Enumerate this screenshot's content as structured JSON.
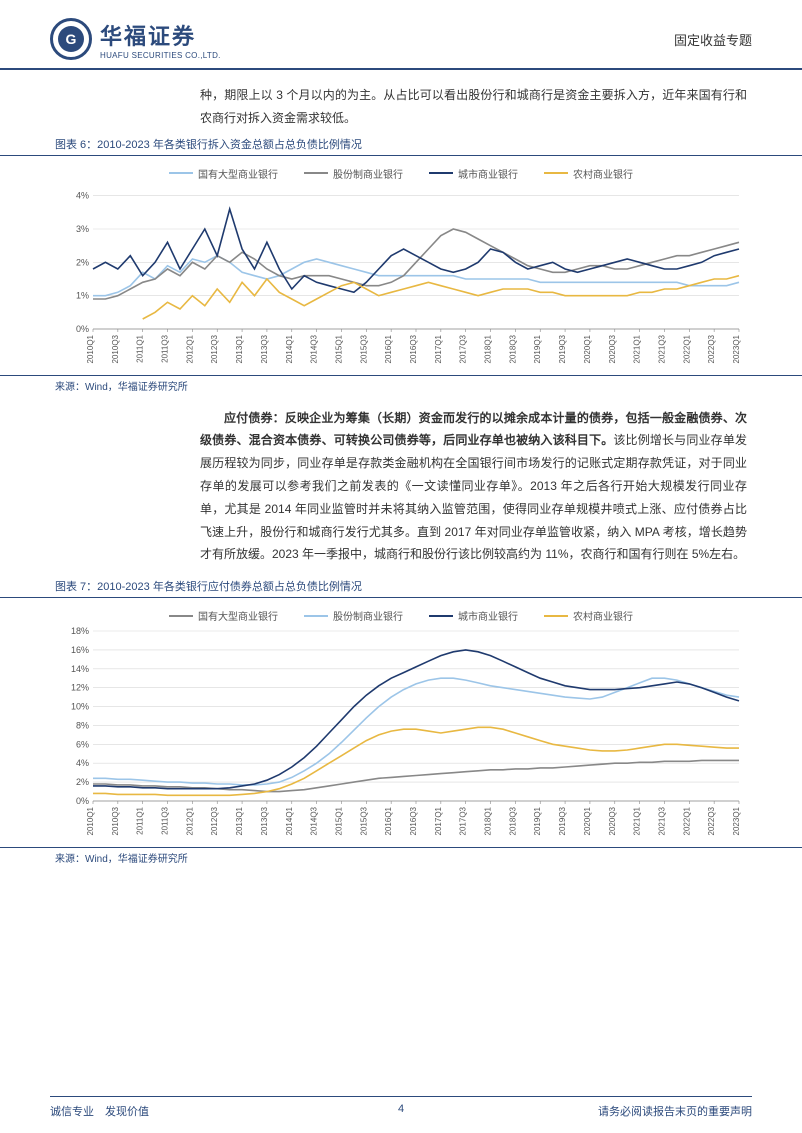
{
  "header": {
    "company_cn": "华福证券",
    "company_en": "HUAFU SECURITIES CO.,LTD.",
    "logo_letter": "G",
    "doc_type": "固定收益专题"
  },
  "para1": "种，期限上以 3 个月以内的为主。从占比可以看出股份行和城商行是资金主要拆入方，近年来国有行和农商行对拆入资金需求较低。",
  "chart6": {
    "caption": "图表 6：2010-2023 年各类银行拆入资金总额占总负债比例情况",
    "source": "来源：Wind，华福证券研究所",
    "type": "line",
    "series": [
      {
        "name": "国有大型商业银行",
        "color": "#9cc5e8"
      },
      {
        "name": "股份制商业银行",
        "color": "#888888"
      },
      {
        "name": "城市商业银行",
        "color": "#1f3a6e"
      },
      {
        "name": "农村商业银行",
        "color": "#e8b842"
      }
    ],
    "ylim": [
      0,
      4.2
    ],
    "yticks": [
      0,
      1,
      2,
      3,
      4
    ],
    "ytick_labels": [
      "0%",
      "1%",
      "2%",
      "3%",
      "4%"
    ],
    "xlabels": [
      "2010Q1",
      "2010Q3",
      "2011Q1",
      "2011Q3",
      "2012Q1",
      "2012Q3",
      "2013Q1",
      "2013Q3",
      "2014Q1",
      "2014Q3",
      "2015Q1",
      "2015Q3",
      "2016Q1",
      "2016Q3",
      "2017Q1",
      "2017Q3",
      "2018Q1",
      "2018Q3",
      "2019Q1",
      "2019Q3",
      "2020Q1",
      "2020Q3",
      "2021Q1",
      "2021Q3",
      "2022Q1",
      "2022Q3",
      "2023Q1"
    ],
    "data": {
      "state": [
        1.0,
        1.0,
        1.1,
        1.3,
        1.7,
        1.5,
        1.9,
        1.7,
        2.1,
        2.0,
        2.2,
        2.0,
        1.7,
        1.6,
        1.5,
        1.6,
        1.8,
        2.0,
        2.1,
        2.0,
        1.9,
        1.8,
        1.7,
        1.6,
        1.6,
        1.6,
        1.6,
        1.6,
        1.6,
        1.6,
        1.5,
        1.5,
        1.5,
        1.5,
        1.5,
        1.5,
        1.4,
        1.4,
        1.4,
        1.4,
        1.4,
        1.4,
        1.4,
        1.4,
        1.4,
        1.4,
        1.4,
        1.4,
        1.3,
        1.3,
        1.3,
        1.3,
        1.4
      ],
      "joint": [
        0.9,
        0.9,
        1.0,
        1.2,
        1.4,
        1.5,
        1.8,
        1.6,
        2.0,
        1.8,
        2.2,
        2.0,
        2.3,
        2.1,
        1.8,
        1.6,
        1.5,
        1.6,
        1.6,
        1.6,
        1.5,
        1.4,
        1.3,
        1.3,
        1.4,
        1.6,
        2.0,
        2.4,
        2.8,
        3.0,
        2.9,
        2.7,
        2.5,
        2.3,
        2.1,
        1.9,
        1.8,
        1.7,
        1.7,
        1.8,
        1.9,
        1.9,
        1.8,
        1.8,
        1.9,
        2.0,
        2.1,
        2.2,
        2.2,
        2.3,
        2.4,
        2.5,
        2.6
      ],
      "city": [
        1.8,
        2.0,
        1.8,
        2.2,
        1.6,
        2.0,
        2.6,
        1.8,
        2.4,
        3.0,
        2.2,
        3.6,
        2.4,
        1.8,
        2.6,
        1.8,
        1.2,
        1.6,
        1.4,
        1.3,
        1.2,
        1.1,
        1.4,
        1.8,
        2.2,
        2.4,
        2.2,
        2.0,
        1.8,
        1.7,
        1.8,
        2.0,
        2.4,
        2.3,
        2.0,
        1.8,
        1.9,
        2.0,
        1.8,
        1.7,
        1.8,
        1.9,
        2.0,
        2.1,
        2.0,
        1.9,
        1.8,
        1.8,
        1.9,
        2.0,
        2.2,
        2.3,
        2.4
      ],
      "rural": [
        null,
        null,
        null,
        null,
        0.3,
        0.5,
        0.8,
        0.6,
        1.0,
        0.7,
        1.2,
        0.8,
        1.4,
        1.0,
        1.5,
        1.1,
        0.9,
        0.7,
        0.9,
        1.1,
        1.3,
        1.4,
        1.2,
        1.0,
        1.1,
        1.2,
        1.3,
        1.4,
        1.3,
        1.2,
        1.1,
        1.0,
        1.1,
        1.2,
        1.2,
        1.2,
        1.1,
        1.1,
        1.0,
        1.0,
        1.0,
        1.0,
        1.0,
        1.0,
        1.1,
        1.1,
        1.2,
        1.2,
        1.3,
        1.4,
        1.5,
        1.5,
        1.6
      ]
    },
    "background_color": "#ffffff",
    "line_width": 1.6
  },
  "para2_bold": "应付债券：反映企业为筹集（长期）资金而发行的以摊余成本计量的债券，包括一般金融债券、次级债券、混合资本债券、可转换公司债券等，后同业存单也被纳入该科目下。",
  "para2_rest": "该比例增长与同业存单发展历程较为同步，同业存单是存款类金融机构在全国银行间市场发行的记账式定期存款凭证，对于同业存单的发展可以参考我们之前发表的《一文读懂同业存单》。2013 年之后各行开始大规模发行同业存单，尤其是 2014 年同业监管时并未将其纳入监管范围，使得同业存单规模井喷式上涨、应付债券占比飞速上升，股份行和城商行发行尤其多。直到 2017 年对同业存单监管收紧，纳入 MPA 考核，增长趋势才有所放缓。2023 年一季报中，城商行和股份行该比例较高约为 11%，农商行和国有行则在 5%左右。",
  "chart7": {
    "caption": "图表 7：2010-2023 年各类银行应付债券总额占总负债比例情况",
    "source": "来源：Wind，华福证券研究所",
    "type": "line",
    "series": [
      {
        "name": "国有大型商业银行",
        "color": "#888888"
      },
      {
        "name": "股份制商业银行",
        "color": "#9cc5e8"
      },
      {
        "name": "城市商业银行",
        "color": "#1f3a6e"
      },
      {
        "name": "农村商业银行",
        "color": "#e8b842"
      }
    ],
    "ylim": [
      0,
      18
    ],
    "yticks": [
      0,
      2,
      4,
      6,
      8,
      10,
      12,
      14,
      16,
      18
    ],
    "ytick_labels": [
      "0%",
      "2%",
      "4%",
      "6%",
      "8%",
      "10%",
      "12%",
      "14%",
      "16%",
      "18%"
    ],
    "xlabels": [
      "2010Q1",
      "2010Q3",
      "2011Q1",
      "2011Q3",
      "2012Q1",
      "2012Q3",
      "2013Q1",
      "2013Q3",
      "2014Q1",
      "2014Q3",
      "2015Q1",
      "2015Q3",
      "2016Q1",
      "2016Q3",
      "2017Q1",
      "2017Q3",
      "2018Q1",
      "2018Q3",
      "2019Q1",
      "2019Q3",
      "2020Q1",
      "2020Q3",
      "2021Q1",
      "2021Q3",
      "2022Q1",
      "2022Q3",
      "2023Q1"
    ],
    "data": {
      "state": [
        1.8,
        1.8,
        1.7,
        1.7,
        1.6,
        1.6,
        1.5,
        1.5,
        1.4,
        1.4,
        1.3,
        1.2,
        1.2,
        1.1,
        1.0,
        1.0,
        1.1,
        1.2,
        1.4,
        1.6,
        1.8,
        2.0,
        2.2,
        2.4,
        2.5,
        2.6,
        2.7,
        2.8,
        2.9,
        3.0,
        3.1,
        3.2,
        3.3,
        3.3,
        3.4,
        3.4,
        3.5,
        3.5,
        3.6,
        3.7,
        3.8,
        3.9,
        4.0,
        4.0,
        4.1,
        4.1,
        4.2,
        4.2,
        4.2,
        4.3,
        4.3,
        4.3,
        4.3
      ],
      "joint": [
        2.4,
        2.4,
        2.3,
        2.3,
        2.2,
        2.1,
        2.0,
        2.0,
        1.9,
        1.9,
        1.8,
        1.8,
        1.7,
        1.7,
        1.8,
        2.0,
        2.5,
        3.2,
        4.0,
        5.0,
        6.2,
        7.5,
        8.8,
        10.0,
        11.0,
        11.8,
        12.4,
        12.8,
        13.0,
        13.0,
        12.8,
        12.5,
        12.2,
        12.0,
        11.8,
        11.6,
        11.4,
        11.2,
        11.0,
        10.9,
        10.8,
        11.0,
        11.5,
        12.0,
        12.5,
        13.0,
        13.0,
        12.8,
        12.4,
        12.0,
        11.6,
        11.2,
        11.0
      ],
      "city": [
        1.6,
        1.6,
        1.5,
        1.5,
        1.4,
        1.4,
        1.3,
        1.3,
        1.3,
        1.3,
        1.3,
        1.4,
        1.6,
        1.8,
        2.2,
        2.8,
        3.6,
        4.6,
        5.8,
        7.2,
        8.6,
        10.0,
        11.2,
        12.2,
        13.0,
        13.6,
        14.2,
        14.8,
        15.4,
        15.8,
        16.0,
        15.8,
        15.4,
        14.8,
        14.2,
        13.6,
        13.0,
        12.6,
        12.2,
        12.0,
        11.8,
        11.8,
        11.8,
        11.9,
        12.0,
        12.2,
        12.4,
        12.6,
        12.4,
        12.0,
        11.5,
        11.0,
        10.6
      ],
      "rural": [
        0.8,
        0.8,
        0.7,
        0.7,
        0.7,
        0.7,
        0.6,
        0.6,
        0.6,
        0.6,
        0.6,
        0.6,
        0.7,
        0.8,
        1.0,
        1.3,
        1.8,
        2.4,
        3.2,
        4.0,
        4.8,
        5.6,
        6.4,
        7.0,
        7.4,
        7.6,
        7.6,
        7.4,
        7.2,
        7.4,
        7.6,
        7.8,
        7.8,
        7.6,
        7.2,
        6.8,
        6.4,
        6.0,
        5.8,
        5.6,
        5.4,
        5.3,
        5.3,
        5.4,
        5.6,
        5.8,
        6.0,
        6.0,
        5.9,
        5.8,
        5.7,
        5.6,
        5.6
      ]
    },
    "background_color": "#ffffff",
    "line_width": 1.6
  },
  "footer": {
    "left": "诚信专业　发现价值",
    "page": "4",
    "right": "请务必阅读报告末页的重要声明"
  }
}
